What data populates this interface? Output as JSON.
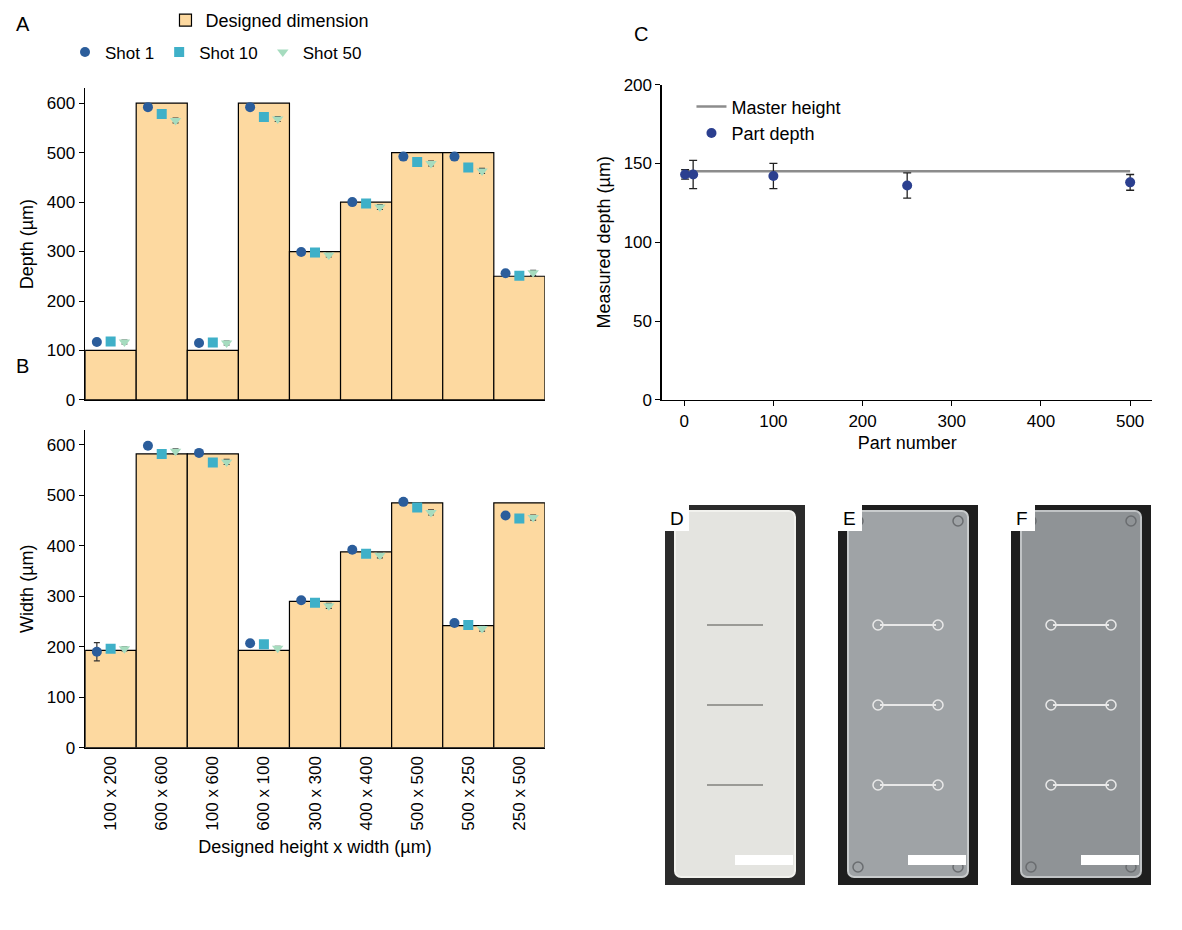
{
  "chart_data": [
    {
      "panel": "A",
      "type": "bar",
      "ylabel": "Depth (µm)",
      "categories": [
        "100 x 200",
        "600 x 600",
        "100 x 600",
        "600 x 100",
        "300 x 300",
        "400 x 400",
        "500 x 500",
        "500 x 250",
        "250 x 500"
      ],
      "tick_labels": "y",
      "ylim": [
        0,
        630
      ],
      "yticks": [
        0,
        100,
        200,
        300,
        400,
        500,
        600
      ],
      "grid": false,
      "legend": "top",
      "series": [
        {
          "name": "Designed dimension",
          "type": "bar",
          "color": "#fdd9a0",
          "values": [
            100,
            600,
            100,
            600,
            300,
            400,
            500,
            500,
            250
          ]
        },
        {
          "name": "Shot 1",
          "type": "scatter",
          "marker": "circle",
          "color": "#2b5d9b",
          "values": [
            117,
            592,
            115,
            592,
            299,
            400,
            492,
            492,
            256
          ],
          "errors": [
            3,
            3,
            3,
            3,
            3,
            5,
            3,
            3,
            4
          ]
        },
        {
          "name": "Shot 10",
          "type": "scatter",
          "marker": "square",
          "color": "#3fb0c8",
          "values": [
            118,
            578,
            116,
            572,
            298,
            397,
            481,
            470,
            251
          ],
          "errors": [
            3,
            4,
            3,
            4,
            3,
            4,
            4,
            4,
            4
          ]
        },
        {
          "name": "Shot 50",
          "type": "scatter",
          "marker": "triangle-down",
          "color": "#a6dcbf",
          "values": [
            117,
            565,
            115,
            568,
            293,
            390,
            478,
            463,
            257
          ],
          "errors": [
            4,
            5,
            4,
            5,
            4,
            5,
            5,
            5,
            5
          ]
        }
      ]
    },
    {
      "panel": "B",
      "type": "bar",
      "ylabel": "Width (µm)",
      "xlabel": "Designed height x width (µm)",
      "categories": [
        "100 x 200",
        "600 x 600",
        "100 x 600",
        "600 x 100",
        "300 x 300",
        "400 x 400",
        "500 x 500",
        "500 x 250",
        "250 x 500"
      ],
      "ylim": [
        0,
        630
      ],
      "yticks": [
        0,
        100,
        200,
        300,
        400,
        500,
        600
      ],
      "grid": false,
      "series": [
        {
          "name": "Designed dimension",
          "type": "bar",
          "color": "#fdd9a0",
          "values": [
            193,
            582,
            582,
            193,
            290,
            388,
            485,
            242,
            485
          ]
        },
        {
          "name": "Shot 1",
          "type": "scatter",
          "marker": "circle",
          "color": "#2b5d9b",
          "values": [
            190,
            598,
            584,
            207,
            292,
            392,
            487,
            247,
            460
          ],
          "errors": [
            18,
            3,
            3,
            3,
            3,
            3,
            3,
            3,
            3
          ]
        },
        {
          "name": "Shot 10",
          "type": "scatter",
          "marker": "square",
          "color": "#3fb0c8",
          "values": [
            196,
            582,
            565,
            205,
            287,
            384,
            476,
            243,
            454
          ],
          "errors": [
            4,
            4,
            4,
            4,
            4,
            4,
            4,
            4,
            4
          ]
        },
        {
          "name": "Shot 50",
          "type": "scatter",
          "marker": "triangle-down",
          "color": "#a6dcbf",
          "values": [
            196,
            587,
            566,
            197,
            281,
            381,
            466,
            236,
            456
          ],
          "errors": [
            4,
            5,
            5,
            4,
            5,
            5,
            5,
            5,
            5
          ]
        }
      ]
    },
    {
      "panel": "C",
      "type": "scatter",
      "xlabel": "Part number",
      "ylabel": "Measured depth (µm)",
      "xlim": [
        -25,
        525
      ],
      "xticks": [
        0,
        100,
        200,
        300,
        400,
        500
      ],
      "ylim": [
        0,
        200
      ],
      "yticks": [
        0,
        50,
        100,
        150,
        200
      ],
      "grid": false,
      "legend": "top left",
      "series": [
        {
          "name": "Master height",
          "type": "line",
          "color": "#8c8c8c",
          "x": [
            0,
            500
          ],
          "values": [
            145,
            145
          ]
        },
        {
          "name": "Part depth",
          "type": "scatter",
          "marker": "circle",
          "color": "#2b3f8f",
          "x": [
            1,
            10,
            100,
            250,
            500
          ],
          "values": [
            143,
            143,
            142,
            136,
            138
          ],
          "errors": [
            3,
            9,
            8,
            8,
            5
          ]
        }
      ]
    }
  ],
  "photos": [
    {
      "label": "D"
    },
    {
      "label": "E"
    },
    {
      "label": "F"
    }
  ]
}
